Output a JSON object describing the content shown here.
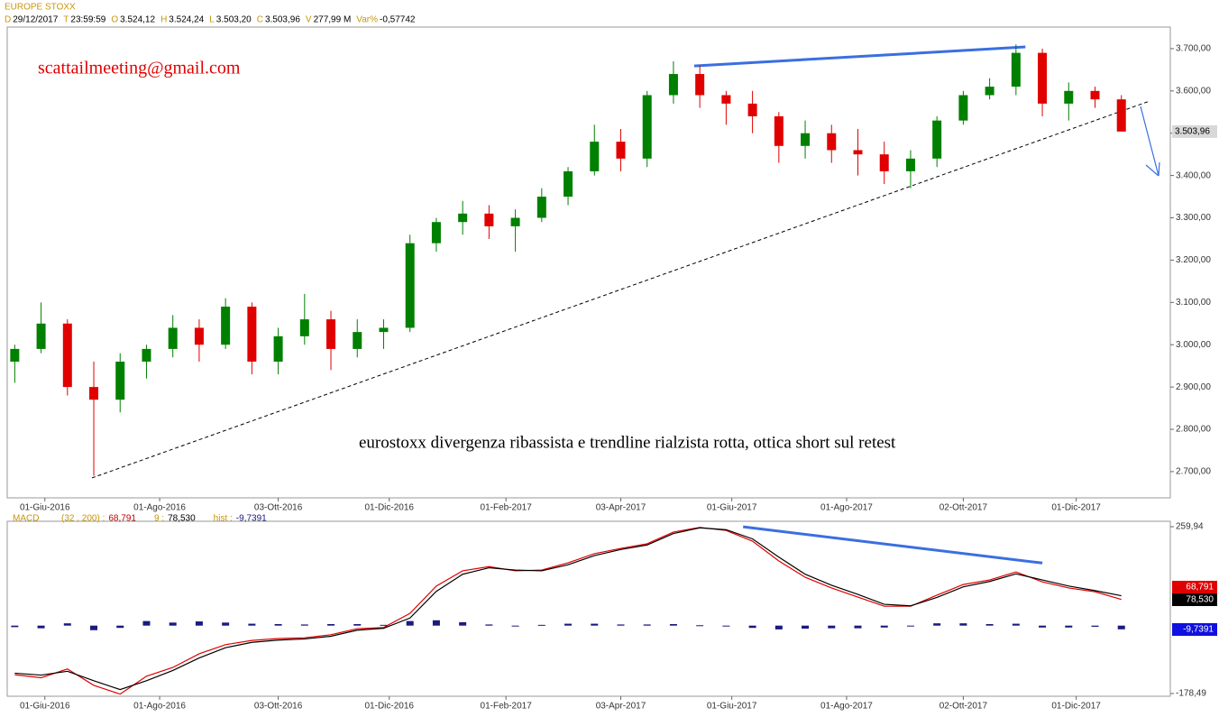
{
  "chart_data": [
    {
      "type": "candlestick",
      "title": "EUROPE STOXX",
      "header": [
        {
          "label": "D",
          "value": "29/12/2017"
        },
        {
          "label": "T",
          "value": "23:59:59"
        },
        {
          "label": "O",
          "value": "3.524,12"
        },
        {
          "label": "H",
          "value": "3.524,24"
        },
        {
          "label": "L",
          "value": "3.503,20"
        },
        {
          "label": "C",
          "value": "3.503,96"
        },
        {
          "label": "V",
          "value": "277,99 M"
        },
        {
          "label": "Var%",
          "value": "-0,57742"
        }
      ],
      "x": [
        "2016-05-16",
        "2016-05-30",
        "2016-06-13",
        "2016-06-27",
        "2016-07-11",
        "2016-07-25",
        "2016-08-08",
        "2016-08-22",
        "2016-09-05",
        "2016-09-19",
        "2016-10-03",
        "2016-10-17",
        "2016-10-31",
        "2016-11-14",
        "2016-11-28",
        "2016-12-12",
        "2016-12-26",
        "2017-01-09",
        "2017-01-23",
        "2017-02-06",
        "2017-02-20",
        "2017-03-06",
        "2017-03-20",
        "2017-04-03",
        "2017-04-17",
        "2017-05-01",
        "2017-05-15",
        "2017-05-29",
        "2017-06-12",
        "2017-06-26",
        "2017-07-10",
        "2017-07-24",
        "2017-08-07",
        "2017-08-21",
        "2017-09-04",
        "2017-09-18",
        "2017-10-02",
        "2017-10-16",
        "2017-10-30",
        "2017-11-13",
        "2017-11-27",
        "2017-12-11",
        "2017-12-25"
      ],
      "open": [
        2960,
        2990,
        3050,
        2900,
        2870,
        2960,
        2990,
        3040,
        3000,
        3090,
        2960,
        3020,
        3060,
        2990,
        3030,
        3040,
        3240,
        3290,
        3310,
        3280,
        3300,
        3350,
        3410,
        3480,
        3440,
        3590,
        3640,
        3590,
        3570,
        3540,
        3470,
        3500,
        3460,
        3450,
        3410,
        3440,
        3530,
        3590,
        3610,
        3690,
        3570,
        3600,
        3580
      ],
      "high": [
        3000,
        3100,
        3060,
        2960,
        2980,
        3000,
        3070,
        3060,
        3110,
        3100,
        3040,
        3120,
        3080,
        3060,
        3060,
        3260,
        3300,
        3340,
        3330,
        3320,
        3370,
        3420,
        3520,
        3510,
        3600,
        3670,
        3660,
        3600,
        3600,
        3550,
        3530,
        3520,
        3510,
        3480,
        3460,
        3540,
        3600,
        3630,
        3710,
        3700,
        3620,
        3610,
        3590
      ],
      "low": [
        2910,
        2980,
        2880,
        2690,
        2840,
        2920,
        2970,
        2960,
        2990,
        2930,
        2930,
        3000,
        2940,
        2970,
        2990,
        3030,
        3220,
        3260,
        3250,
        3220,
        3290,
        3330,
        3400,
        3410,
        3420,
        3570,
        3560,
        3520,
        3500,
        3430,
        3440,
        3430,
        3400,
        3380,
        3370,
        3420,
        3520,
        3580,
        3590,
        3540,
        3530,
        3560,
        3510
      ],
      "close": [
        2990,
        3050,
        2900,
        2870,
        2960,
        2990,
        3040,
        3000,
        3090,
        2960,
        3020,
        3060,
        2990,
        3030,
        3040,
        3240,
        3290,
        3310,
        3280,
        3300,
        3350,
        3410,
        3480,
        3440,
        3590,
        3640,
        3590,
        3570,
        3540,
        3470,
        3500,
        3460,
        3450,
        3410,
        3440,
        3530,
        3590,
        3610,
        3690,
        3570,
        3600,
        3580,
        3503.96
      ],
      "up_color": "#008000",
      "down_color": "#e00000",
      "last_label": "3.503,96",
      "xlim": [
        "2016-05-12",
        "2018-01-20"
      ],
      "xticks": [
        {
          "value": "2016-06-01",
          "label": "01-Giu-2016"
        },
        {
          "value": "2016-08-01",
          "label": "01-Ago-2016"
        },
        {
          "value": "2016-10-03",
          "label": "03-Ott-2016"
        },
        {
          "value": "2016-12-01",
          "label": "01-Dic-2016"
        },
        {
          "value": "2017-02-01",
          "label": "01-Feb-2017"
        },
        {
          "value": "2017-04-03",
          "label": "03-Apr-2017"
        },
        {
          "value": "2017-06-01",
          "label": "01-Giu-2017"
        },
        {
          "value": "2017-08-01",
          "label": "01-Ago-2017"
        },
        {
          "value": "2017-10-02",
          "label": "02-Ott-2017"
        },
        {
          "value": "2017-12-01",
          "label": "01-Dic-2017"
        }
      ],
      "ylim": [
        2638,
        3751
      ],
      "yticks": [
        {
          "value": 2700,
          "label": "2.700,00"
        },
        {
          "value": 2800,
          "label": "2.800,00"
        },
        {
          "value": 2900,
          "label": "2.900,00"
        },
        {
          "value": 3000,
          "label": "3.000,00"
        },
        {
          "value": 3100,
          "label": "3.100,00"
        },
        {
          "value": 3200,
          "label": "3.200,00"
        },
        {
          "value": 3300,
          "label": "3.300,00"
        },
        {
          "value": 3400,
          "label": "3.400,00"
        },
        {
          "value": 3500,
          "label": "3.500,00"
        },
        {
          "value": 3600,
          "label": "3.600,00"
        },
        {
          "value": 3700,
          "label": "3.700,00"
        }
      ],
      "annotations": [
        {
          "text": "scattailmeeting@gmail.com",
          "color": "#e00000"
        },
        {
          "text": "eurostoxx divergenza ribassista e trendline rialzista rotta, ottica short sul retest",
          "color": "#000000"
        }
      ],
      "lines": [
        {
          "x": [
            "2017-05-12",
            "2017-11-04"
          ],
          "values": [
            3659,
            3704
          ],
          "color": "#3a6fe0",
          "dashed": false
        },
        {
          "x": [
            "2016-06-26",
            "2018-01-09"
          ],
          "values": [
            2685,
            3576
          ],
          "color": "#000000",
          "dashed": true
        }
      ]
    },
    {
      "type": "macd",
      "title": "MACD",
      "x": [
        "2016-05-16",
        "2016-05-30",
        "2016-06-13",
        "2016-06-27",
        "2016-07-11",
        "2016-07-25",
        "2016-08-08",
        "2016-08-22",
        "2016-09-05",
        "2016-09-19",
        "2016-10-03",
        "2016-10-17",
        "2016-10-31",
        "2016-11-14",
        "2016-11-28",
        "2016-12-12",
        "2016-12-26",
        "2017-01-09",
        "2017-01-23",
        "2017-02-06",
        "2017-02-20",
        "2017-03-06",
        "2017-03-20",
        "2017-04-03",
        "2017-04-17",
        "2017-05-01",
        "2017-05-15",
        "2017-05-29",
        "2017-06-12",
        "2017-06-26",
        "2017-07-10",
        "2017-07-24",
        "2017-08-07",
        "2017-08-21",
        "2017-09-04",
        "2017-09-18",
        "2017-10-02",
        "2017-10-16",
        "2017-10-30",
        "2017-11-13",
        "2017-11-27",
        "2017-12-11",
        "2017-12-25"
      ],
      "series": [
        {
          "name": "(32 , 200) :",
          "color": "#e00000",
          "last_label": "68,791",
          "values": [
            -129,
            -137,
            -114,
            -157,
            -180,
            -133,
            -110,
            -74,
            -50,
            -39,
            -34,
            -32,
            -24,
            -8,
            -5,
            32,
            104,
            144,
            155,
            144,
            146,
            165,
            189,
            203,
            215,
            246,
            258,
            250,
            222,
            170,
            127,
            99,
            75,
            51,
            51,
            80,
            108,
            120,
            141,
            115,
            99,
            89,
            68.791
          ]
        },
        {
          "name": "9 :",
          "color": "#000000",
          "last_label": "78,530",
          "values": [
            -125,
            -130,
            -120,
            -145,
            -168,
            -145,
            -118,
            -85,
            -58,
            -44,
            -38,
            -35,
            -28,
            -12,
            -7,
            20,
            90,
            135,
            152,
            146,
            144,
            160,
            184,
            200,
            212,
            242,
            257,
            252,
            228,
            180,
            135,
            106,
            82,
            56,
            52,
            74,
            102,
            116,
            136,
            120,
            104,
            92,
            78.53
          ]
        },
        {
          "name": "hist :",
          "color": "#1a1a80",
          "last_label": "-9,7391",
          "histogram": true,
          "values": [
            -4,
            -7,
            6,
            -12,
            -6,
            12,
            8,
            11,
            8,
            5,
            4,
            3,
            4,
            4,
            2,
            12,
            14,
            9,
            3,
            -2,
            2,
            5,
            5,
            3,
            3,
            4,
            1,
            -2,
            -6,
            -10,
            -8,
            -7,
            -7,
            -5,
            -1,
            6,
            6,
            4,
            5,
            -5,
            -5,
            -3,
            -9.7391
          ]
        }
      ],
      "xlim": [
        "2016-05-12",
        "2018-01-20"
      ],
      "xticks": [
        {
          "value": "2016-06-01",
          "label": "01-Giu-2016"
        },
        {
          "value": "2016-08-01",
          "label": "01-Ago-2016"
        },
        {
          "value": "2016-10-03",
          "label": "03-Ott-2016"
        },
        {
          "value": "2016-12-01",
          "label": "01-Dic-2016"
        },
        {
          "value": "2017-02-01",
          "label": "01-Feb-2017"
        },
        {
          "value": "2017-04-03",
          "label": "03-Apr-2017"
        },
        {
          "value": "2017-06-01",
          "label": "01-Giu-2017"
        },
        {
          "value": "2017-08-01",
          "label": "01-Ago-2017"
        },
        {
          "value": "2017-10-02",
          "label": "02-Ott-2017"
        },
        {
          "value": "2017-12-01",
          "label": "01-Dic-2017"
        }
      ],
      "ylim": [
        -185.6,
        274.2
      ],
      "yticks": [
        {
          "value": -178.49,
          "label": "-178,49"
        },
        {
          "value": 259.94,
          "label": "259,94"
        }
      ],
      "lines": [
        {
          "x": [
            "2017-06-07",
            "2017-11-13"
          ],
          "values": [
            259.6,
            164.5
          ],
          "color": "#3a6fe0",
          "dashed": false
        }
      ]
    }
  ]
}
